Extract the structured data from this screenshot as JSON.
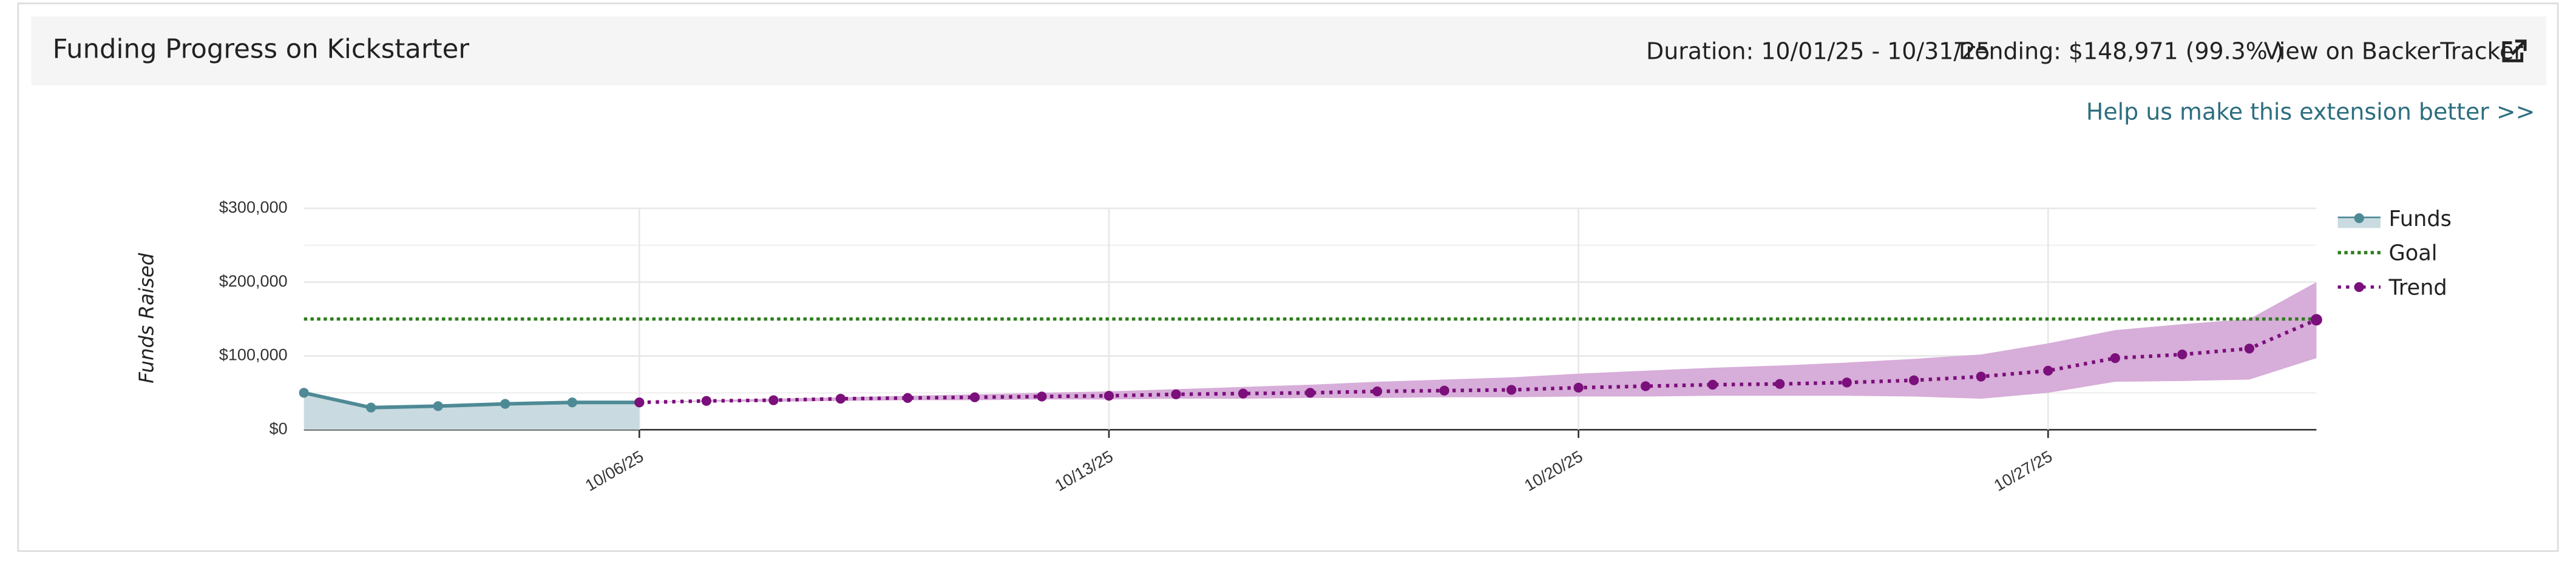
{
  "header": {
    "title": "Funding Progress on Kickstarter",
    "duration": "Duration: 10/01/25 - 10/31/25",
    "trending": "Trending: $148,971 (99.3% )",
    "link": "View on BackerTracker",
    "feedback": "Help us make this extension better >>"
  },
  "chart_data": {
    "type": "line",
    "y_label": "Funds Raised",
    "xlim": [
      "10/01/25",
      "10/31/25"
    ],
    "xticks": [
      "10/06/25",
      "10/13/25",
      "10/20/25",
      "10/27/25"
    ],
    "ylim": [
      0,
      300000
    ],
    "yticks": [
      {
        "value": 0,
        "label": "$0"
      },
      {
        "value": 100000,
        "label": "$100,000"
      },
      {
        "value": 200000,
        "label": "$200,000"
      },
      {
        "value": 300000,
        "label": "$300,000"
      }
    ],
    "grid": true,
    "series": [
      {
        "name": "Funds",
        "color": "#4e8a96",
        "area_color": "#c9dbe0",
        "x": [
          "10/01/25",
          "10/02/25",
          "10/03/25",
          "10/04/25",
          "10/05/25",
          "10/06/25"
        ],
        "values": [
          50000,
          30000,
          32000,
          35000,
          37000,
          37000
        ]
      },
      {
        "name": "Goal",
        "color": "#2e7d1e",
        "x": [
          "10/01/25",
          "10/31/25"
        ],
        "values": [
          150000,
          150000
        ]
      },
      {
        "name": "Trend",
        "color": "#7b0f7b",
        "band_color": "#d7add9",
        "x": [
          "10/06/25",
          "10/07/25",
          "10/08/25",
          "10/09/25",
          "10/10/25",
          "10/11/25",
          "10/12/25",
          "10/13/25",
          "10/14/25",
          "10/15/25",
          "10/16/25",
          "10/17/25",
          "10/18/25",
          "10/19/25",
          "10/20/25",
          "10/21/25",
          "10/22/25",
          "10/23/25",
          "10/24/25",
          "10/25/25",
          "10/26/25",
          "10/27/25",
          "10/28/25",
          "10/29/25",
          "10/30/25",
          "10/31/25"
        ],
        "values": [
          37000,
          39000,
          40000,
          42000,
          43000,
          44000,
          45000,
          46000,
          48000,
          49000,
          50000,
          52000,
          53000,
          54000,
          57000,
          59000,
          61000,
          62000,
          64000,
          67000,
          72000,
          80000,
          97000,
          102000,
          110000,
          148971
        ],
        "upper": [
          37000,
          40000,
          42000,
          44000,
          46000,
          48000,
          50000,
          52000,
          55000,
          58000,
          61000,
          65000,
          68000,
          71000,
          76000,
          80000,
          84000,
          87000,
          91000,
          96000,
          102000,
          117000,
          135000,
          143000,
          150000,
          200000
        ],
        "lower": [
          37000,
          38000,
          38000,
          39000,
          40000,
          40000,
          41000,
          41000,
          42000,
          42000,
          43000,
          43000,
          44000,
          44000,
          45000,
          45000,
          46000,
          46000,
          46000,
          45000,
          42000,
          50000,
          65000,
          66000,
          68000,
          97000
        ]
      }
    ]
  }
}
